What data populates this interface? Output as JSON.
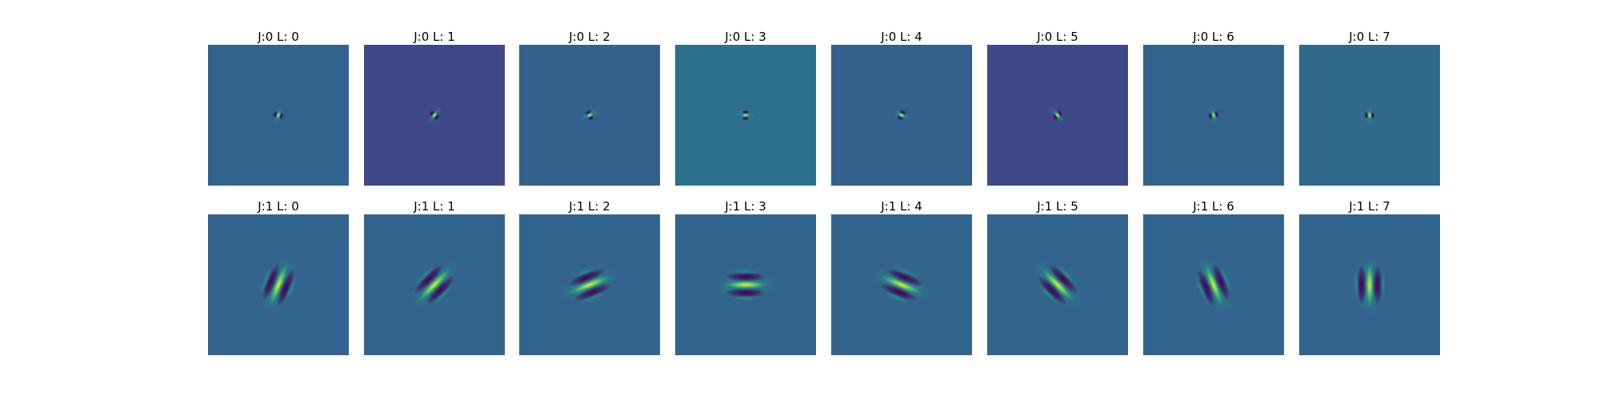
{
  "figure": {
    "rows": [
      {
        "panels": [
          {
            "title": "J:0 L: 0",
            "background": "#31638c",
            "angle_deg": 75,
            "length": 1.0,
            "width": 0.9,
            "scale": "small"
          },
          {
            "title": "J:0 L: 1",
            "background": "#3d4989",
            "angle_deg": 52,
            "length": 1.0,
            "width": 0.9,
            "scale": "small"
          },
          {
            "title": "J:0 L: 2",
            "background": "#33608c",
            "angle_deg": 25,
            "length": 1.0,
            "width": 0.9,
            "scale": "small"
          },
          {
            "title": "J:0 L: 3",
            "background": "#2d708e",
            "angle_deg": 0,
            "length": 1.0,
            "width": 0.9,
            "scale": "small"
          },
          {
            "title": "J:0 L: 4",
            "background": "#33608c",
            "angle_deg": -25,
            "length": 1.0,
            "width": 0.9,
            "scale": "small"
          },
          {
            "title": "J:0 L: 5",
            "background": "#3d4989",
            "angle_deg": -52,
            "length": 1.0,
            "width": 0.9,
            "scale": "small"
          },
          {
            "title": "J:0 L: 6",
            "background": "#31638c",
            "angle_deg": -75,
            "length": 1.0,
            "width": 0.9,
            "scale": "small"
          },
          {
            "title": "J:0 L: 7",
            "background": "#2f6a8d",
            "angle_deg": 90,
            "length": 1.0,
            "width": 0.9,
            "scale": "small"
          }
        ]
      },
      {
        "panels": [
          {
            "title": "J:1 L: 0",
            "background": "#33648d",
            "angle_deg": 68,
            "length": 1.0,
            "width": 1.0,
            "scale": "large"
          },
          {
            "title": "J:1 L: 1",
            "background": "#33648d",
            "angle_deg": 45,
            "length": 1.0,
            "width": 1.0,
            "scale": "large"
          },
          {
            "title": "J:1 L: 2",
            "background": "#33648d",
            "angle_deg": 22,
            "length": 1.0,
            "width": 1.0,
            "scale": "large"
          },
          {
            "title": "J:1 L: 3",
            "background": "#33648d",
            "angle_deg": 0,
            "length": 1.0,
            "width": 1.0,
            "scale": "large"
          },
          {
            "title": "J:1 L: 4",
            "background": "#33648d",
            "angle_deg": -22,
            "length": 1.0,
            "width": 1.0,
            "scale": "large"
          },
          {
            "title": "J:1 L: 5",
            "background": "#33648d",
            "angle_deg": -45,
            "length": 1.0,
            "width": 1.0,
            "scale": "large"
          },
          {
            "title": "J:1 L: 6",
            "background": "#33648d",
            "angle_deg": -68,
            "length": 1.0,
            "width": 1.0,
            "scale": "large"
          },
          {
            "title": "J:1 L: 7",
            "background": "#33648d",
            "angle_deg": 90,
            "length": 1.0,
            "width": 1.0,
            "scale": "large"
          }
        ]
      }
    ],
    "colors": {
      "dark": "#440154",
      "mid": "#21918c",
      "light": "#5ec962",
      "peak": "#fde725"
    }
  }
}
